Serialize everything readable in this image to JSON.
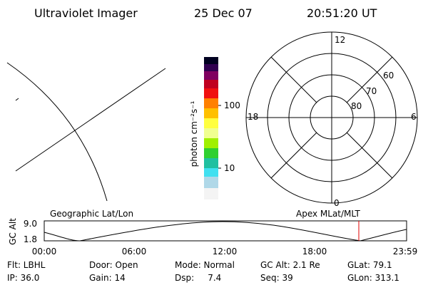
{
  "header": {
    "instrument": "Ultraviolet Imager",
    "date": "25 Dec 07",
    "time": "20:51:20 UT"
  },
  "colorbar": {
    "label": "photon cm⁻²s⁻¹",
    "ticks": [
      "100",
      "10"
    ]
  },
  "polar": {
    "lat_labels": [
      "60",
      "70",
      "80"
    ],
    "mlt_labels": [
      "12",
      "18",
      "6",
      "0"
    ]
  },
  "altitude_plot": {
    "left_title": "Geographic Lat/Lon",
    "right_title": "Apex MLat/MLT",
    "y_label": "GC Alt",
    "y_ticks": [
      "9.0",
      "1.8"
    ],
    "x_ticks": [
      "00:00",
      "06:00",
      "12:00",
      "18:00",
      "23:59"
    ]
  },
  "info": [
    [
      "Flt: LBHL",
      "Door: Open",
      "Mode: Normal",
      "GC Alt: 2.1 Re",
      "GLat: 79.1"
    ],
    [
      "IP: 36.0",
      "Gain: 14",
      "Dsp:     7.4",
      "Seq: 39",
      "GLon: 313.1"
    ]
  ]
}
